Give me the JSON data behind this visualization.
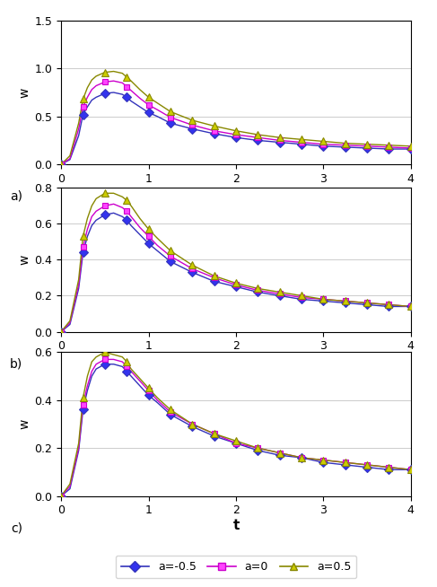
{
  "t_values": [
    0,
    0.1,
    0.2,
    0.25,
    0.3,
    0.35,
    0.4,
    0.5,
    0.6,
    0.7,
    0.75,
    0.8,
    0.9,
    1.0,
    1.1,
    1.25,
    1.5,
    1.75,
    2.0,
    2.25,
    2.5,
    2.75,
    3.0,
    3.25,
    3.5,
    3.75,
    4.0
  ],
  "marker_t": [
    0,
    0.25,
    0.5,
    0.75,
    1.0,
    1.25,
    1.5,
    1.75,
    2.0,
    2.25,
    2.5,
    2.75,
    3.0,
    3.25,
    3.5,
    3.75,
    4.0
  ],
  "panels": [
    {
      "label": "a)",
      "ylim": [
        0,
        1.5
      ],
      "yticks": [
        0,
        0.5,
        1.0,
        1.5
      ],
      "series": [
        {
          "name": "a=-0.5",
          "color": "#3333BB",
          "marker": "D",
          "markersize": 5,
          "markerfacecolor": "#3333EE",
          "line_values": [
            0,
            0.05,
            0.3,
            0.52,
            0.6,
            0.67,
            0.7,
            0.74,
            0.75,
            0.73,
            0.7,
            0.66,
            0.6,
            0.54,
            0.5,
            0.43,
            0.37,
            0.32,
            0.28,
            0.25,
            0.23,
            0.21,
            0.19,
            0.18,
            0.17,
            0.16,
            0.16
          ],
          "marker_values": [
            0,
            0.52,
            0.74,
            0.7,
            0.54,
            0.43,
            0.37,
            0.32,
            0.28,
            0.25,
            0.23,
            0.21,
            0.19,
            0.18,
            0.17,
            0.16,
            0.16
          ]
        },
        {
          "name": "a=0",
          "color": "#CC00CC",
          "marker": "s",
          "markersize": 5,
          "markerfacecolor": "#FF44FF",
          "line_values": [
            0,
            0.06,
            0.37,
            0.6,
            0.7,
            0.78,
            0.82,
            0.86,
            0.87,
            0.85,
            0.81,
            0.77,
            0.69,
            0.62,
            0.57,
            0.49,
            0.41,
            0.35,
            0.31,
            0.28,
            0.25,
            0.23,
            0.21,
            0.2,
            0.19,
            0.18,
            0.17
          ],
          "marker_values": [
            0,
            0.6,
            0.86,
            0.81,
            0.62,
            0.49,
            0.41,
            0.35,
            0.31,
            0.28,
            0.25,
            0.23,
            0.21,
            0.2,
            0.19,
            0.18,
            0.17
          ]
        },
        {
          "name": "a=0.5",
          "color": "#888800",
          "marker": "^",
          "markersize": 6,
          "markerfacecolor": "#CCCC00",
          "line_values": [
            0,
            0.09,
            0.43,
            0.68,
            0.8,
            0.88,
            0.92,
            0.96,
            0.97,
            0.95,
            0.91,
            0.87,
            0.78,
            0.7,
            0.64,
            0.55,
            0.46,
            0.4,
            0.35,
            0.31,
            0.28,
            0.26,
            0.24,
            0.22,
            0.21,
            0.2,
            0.19
          ],
          "marker_values": [
            0,
            0.68,
            0.96,
            0.91,
            0.7,
            0.55,
            0.46,
            0.4,
            0.35,
            0.31,
            0.28,
            0.26,
            0.24,
            0.22,
            0.21,
            0.2,
            0.19
          ]
        }
      ]
    },
    {
      "label": "b)",
      "ylim": [
        0,
        0.8
      ],
      "yticks": [
        0,
        0.2,
        0.4,
        0.6,
        0.8
      ],
      "series": [
        {
          "name": "a=-0.5",
          "color": "#3333BB",
          "marker": "D",
          "markersize": 5,
          "markerfacecolor": "#3333EE",
          "line_values": [
            0,
            0.04,
            0.24,
            0.44,
            0.53,
            0.59,
            0.62,
            0.65,
            0.66,
            0.64,
            0.62,
            0.59,
            0.54,
            0.49,
            0.45,
            0.39,
            0.33,
            0.28,
            0.25,
            0.22,
            0.2,
            0.18,
            0.17,
            0.16,
            0.15,
            0.14,
            0.14
          ],
          "marker_values": [
            0,
            0.44,
            0.65,
            0.62,
            0.49,
            0.39,
            0.33,
            0.28,
            0.25,
            0.22,
            0.2,
            0.18,
            0.17,
            0.16,
            0.15,
            0.14,
            0.14
          ]
        },
        {
          "name": "a=0",
          "color": "#CC00CC",
          "marker": "s",
          "markersize": 5,
          "markerfacecolor": "#FF44FF",
          "line_values": [
            0,
            0.05,
            0.26,
            0.47,
            0.57,
            0.64,
            0.67,
            0.7,
            0.71,
            0.69,
            0.67,
            0.64,
            0.58,
            0.53,
            0.48,
            0.42,
            0.35,
            0.3,
            0.26,
            0.23,
            0.21,
            0.19,
            0.18,
            0.17,
            0.16,
            0.15,
            0.14
          ],
          "marker_values": [
            0,
            0.47,
            0.7,
            0.67,
            0.53,
            0.42,
            0.35,
            0.3,
            0.26,
            0.23,
            0.21,
            0.19,
            0.18,
            0.17,
            0.16,
            0.15,
            0.14
          ]
        },
        {
          "name": "a=0.5",
          "color": "#888800",
          "marker": "^",
          "markersize": 6,
          "markerfacecolor": "#CCCC00",
          "line_values": [
            0,
            0.06,
            0.29,
            0.53,
            0.63,
            0.7,
            0.74,
            0.77,
            0.77,
            0.75,
            0.73,
            0.7,
            0.63,
            0.57,
            0.52,
            0.45,
            0.37,
            0.31,
            0.27,
            0.24,
            0.22,
            0.2,
            0.18,
            0.17,
            0.16,
            0.15,
            0.14
          ],
          "marker_values": [
            0,
            0.53,
            0.77,
            0.73,
            0.57,
            0.45,
            0.37,
            0.31,
            0.27,
            0.24,
            0.22,
            0.2,
            0.18,
            0.17,
            0.16,
            0.15,
            0.14
          ]
        }
      ]
    },
    {
      "label": "c)",
      "ylim": [
        0,
        0.6
      ],
      "yticks": [
        0,
        0.2,
        0.4,
        0.6
      ],
      "series": [
        {
          "name": "a=-0.5",
          "color": "#3333BB",
          "marker": "D",
          "markersize": 5,
          "markerfacecolor": "#3333EE",
          "line_values": [
            0,
            0.03,
            0.19,
            0.36,
            0.44,
            0.5,
            0.53,
            0.55,
            0.55,
            0.54,
            0.52,
            0.5,
            0.46,
            0.42,
            0.39,
            0.34,
            0.29,
            0.25,
            0.22,
            0.19,
            0.17,
            0.16,
            0.14,
            0.13,
            0.12,
            0.11,
            0.11
          ],
          "marker_values": [
            0,
            0.36,
            0.55,
            0.52,
            0.42,
            0.34,
            0.29,
            0.25,
            0.22,
            0.19,
            0.17,
            0.16,
            0.14,
            0.13,
            0.12,
            0.11,
            0.11
          ]
        },
        {
          "name": "a=0",
          "color": "#CC00CC",
          "marker": "s",
          "markersize": 5,
          "markerfacecolor": "#FF44FF",
          "line_values": [
            0,
            0.04,
            0.2,
            0.38,
            0.46,
            0.52,
            0.55,
            0.57,
            0.57,
            0.56,
            0.54,
            0.52,
            0.48,
            0.44,
            0.4,
            0.35,
            0.3,
            0.26,
            0.22,
            0.2,
            0.18,
            0.16,
            0.15,
            0.14,
            0.13,
            0.12,
            0.11
          ],
          "marker_values": [
            0,
            0.38,
            0.57,
            0.54,
            0.44,
            0.35,
            0.3,
            0.26,
            0.22,
            0.2,
            0.18,
            0.16,
            0.15,
            0.14,
            0.13,
            0.12,
            0.11
          ]
        },
        {
          "name": "a=0.5",
          "color": "#888800",
          "marker": "^",
          "markersize": 6,
          "markerfacecolor": "#CCCC00",
          "line_values": [
            0,
            0.05,
            0.22,
            0.41,
            0.5,
            0.56,
            0.58,
            0.6,
            0.59,
            0.58,
            0.56,
            0.53,
            0.49,
            0.45,
            0.41,
            0.36,
            0.3,
            0.26,
            0.23,
            0.2,
            0.18,
            0.16,
            0.15,
            0.14,
            0.13,
            0.12,
            0.11
          ],
          "marker_values": [
            0,
            0.41,
            0.6,
            0.56,
            0.45,
            0.36,
            0.3,
            0.26,
            0.23,
            0.2,
            0.18,
            0.16,
            0.15,
            0.14,
            0.13,
            0.12,
            0.11
          ]
        }
      ]
    }
  ],
  "xlabel": "t",
  "ylabel": "w",
  "legend_labels": [
    "a=-0.5",
    "a=0",
    "a=0.5"
  ],
  "legend_colors": [
    "#3333BB",
    "#CC00CC",
    "#888800"
  ],
  "legend_markers": [
    "D",
    "s",
    "^"
  ],
  "legend_markerfacecolors": [
    "#3333EE",
    "#FF44FF",
    "#CCCC00"
  ],
  "background_color": "#ffffff",
  "grid_color": "#cccccc",
  "line_width": 1.0,
  "xticks": [
    0,
    1,
    2,
    3,
    4
  ]
}
